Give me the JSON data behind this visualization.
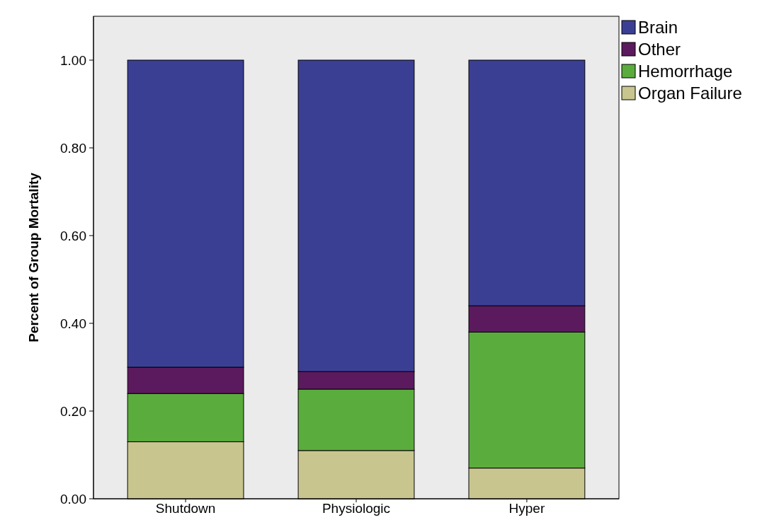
{
  "chart_data": {
    "type": "bar",
    "stacked": true,
    "ylabel": "Percent of Group Mortality",
    "categories": [
      "Shutdown",
      "Physiologic",
      "Hyper"
    ],
    "series": [
      {
        "name": "Organ Failure",
        "color": "#c8c68e",
        "values": [
          0.13,
          0.11,
          0.07
        ]
      },
      {
        "name": "Hemorrhage",
        "color": "#5aad3c",
        "values": [
          0.11,
          0.14,
          0.31
        ]
      },
      {
        "name": "Other",
        "color": "#5c1a5e",
        "values": [
          0.06,
          0.04,
          0.06
        ]
      },
      {
        "name": "Brain",
        "color": "#3b3f94",
        "values": [
          0.7,
          0.71,
          0.56
        ]
      }
    ],
    "ylim": [
      0,
      1.1
    ],
    "yticks": [
      {
        "value": 0,
        "label": "0.00"
      },
      {
        "value": 0.2,
        "label": "0.20"
      },
      {
        "value": 0.4,
        "label": "0.40"
      },
      {
        "value": 0.6,
        "label": "0.60"
      },
      {
        "value": 0.8,
        "label": "0.80"
      },
      {
        "value": 1,
        "label": "1.00"
      }
    ],
    "grid": false,
    "legend": "top right"
  }
}
